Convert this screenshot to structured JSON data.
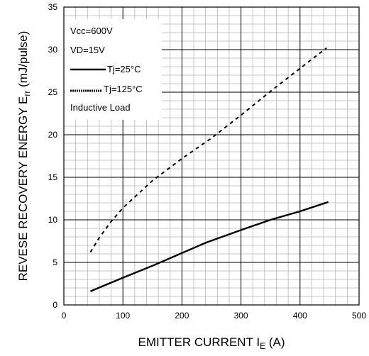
{
  "chart_data": {
    "type": "line",
    "xlabel": {
      "main": "EMITTER CURRENT I",
      "sub": "E",
      "tail": " (A)"
    },
    "ylabel": {
      "main": "REVESE RECOVERY ENERGY E",
      "sub": "rr",
      "tail": " (mJ/pulse)"
    },
    "xlim": [
      0,
      500
    ],
    "ylim": [
      0,
      35
    ],
    "x_ticks": [
      "0",
      "100",
      "200",
      "300",
      "400",
      "500"
    ],
    "y_ticks": [
      "0",
      "5",
      "10",
      "15",
      "20",
      "25",
      "30",
      "35"
    ],
    "grid": true,
    "legend_placement": "top-left",
    "conditions": [
      "Vcc=600V",
      "VD=15V"
    ],
    "footer_note": "Inductive Load",
    "series": [
      {
        "name": "Tj=25°C",
        "style": "solid",
        "color": "#000000",
        "points": [
          [
            45,
            1.6
          ],
          [
            100,
            3.2
          ],
          [
            150,
            4.6
          ],
          [
            200,
            6.1
          ],
          [
            240,
            7.3
          ],
          [
            300,
            8.8
          ],
          [
            350,
            10.0
          ],
          [
            400,
            11.0
          ],
          [
            448,
            12.1
          ]
        ]
      },
      {
        "name": "Tj=125°C",
        "style": "dashed",
        "color": "#000000",
        "points": [
          [
            45,
            6.2
          ],
          [
            60,
            7.9
          ],
          [
            80,
            9.8
          ],
          [
            100,
            11.4
          ],
          [
            150,
            14.6
          ],
          [
            200,
            17.2
          ],
          [
            250,
            19.6
          ],
          [
            300,
            22.3
          ],
          [
            350,
            25.1
          ],
          [
            400,
            27.8
          ],
          [
            445,
            30.2
          ]
        ]
      }
    ]
  }
}
